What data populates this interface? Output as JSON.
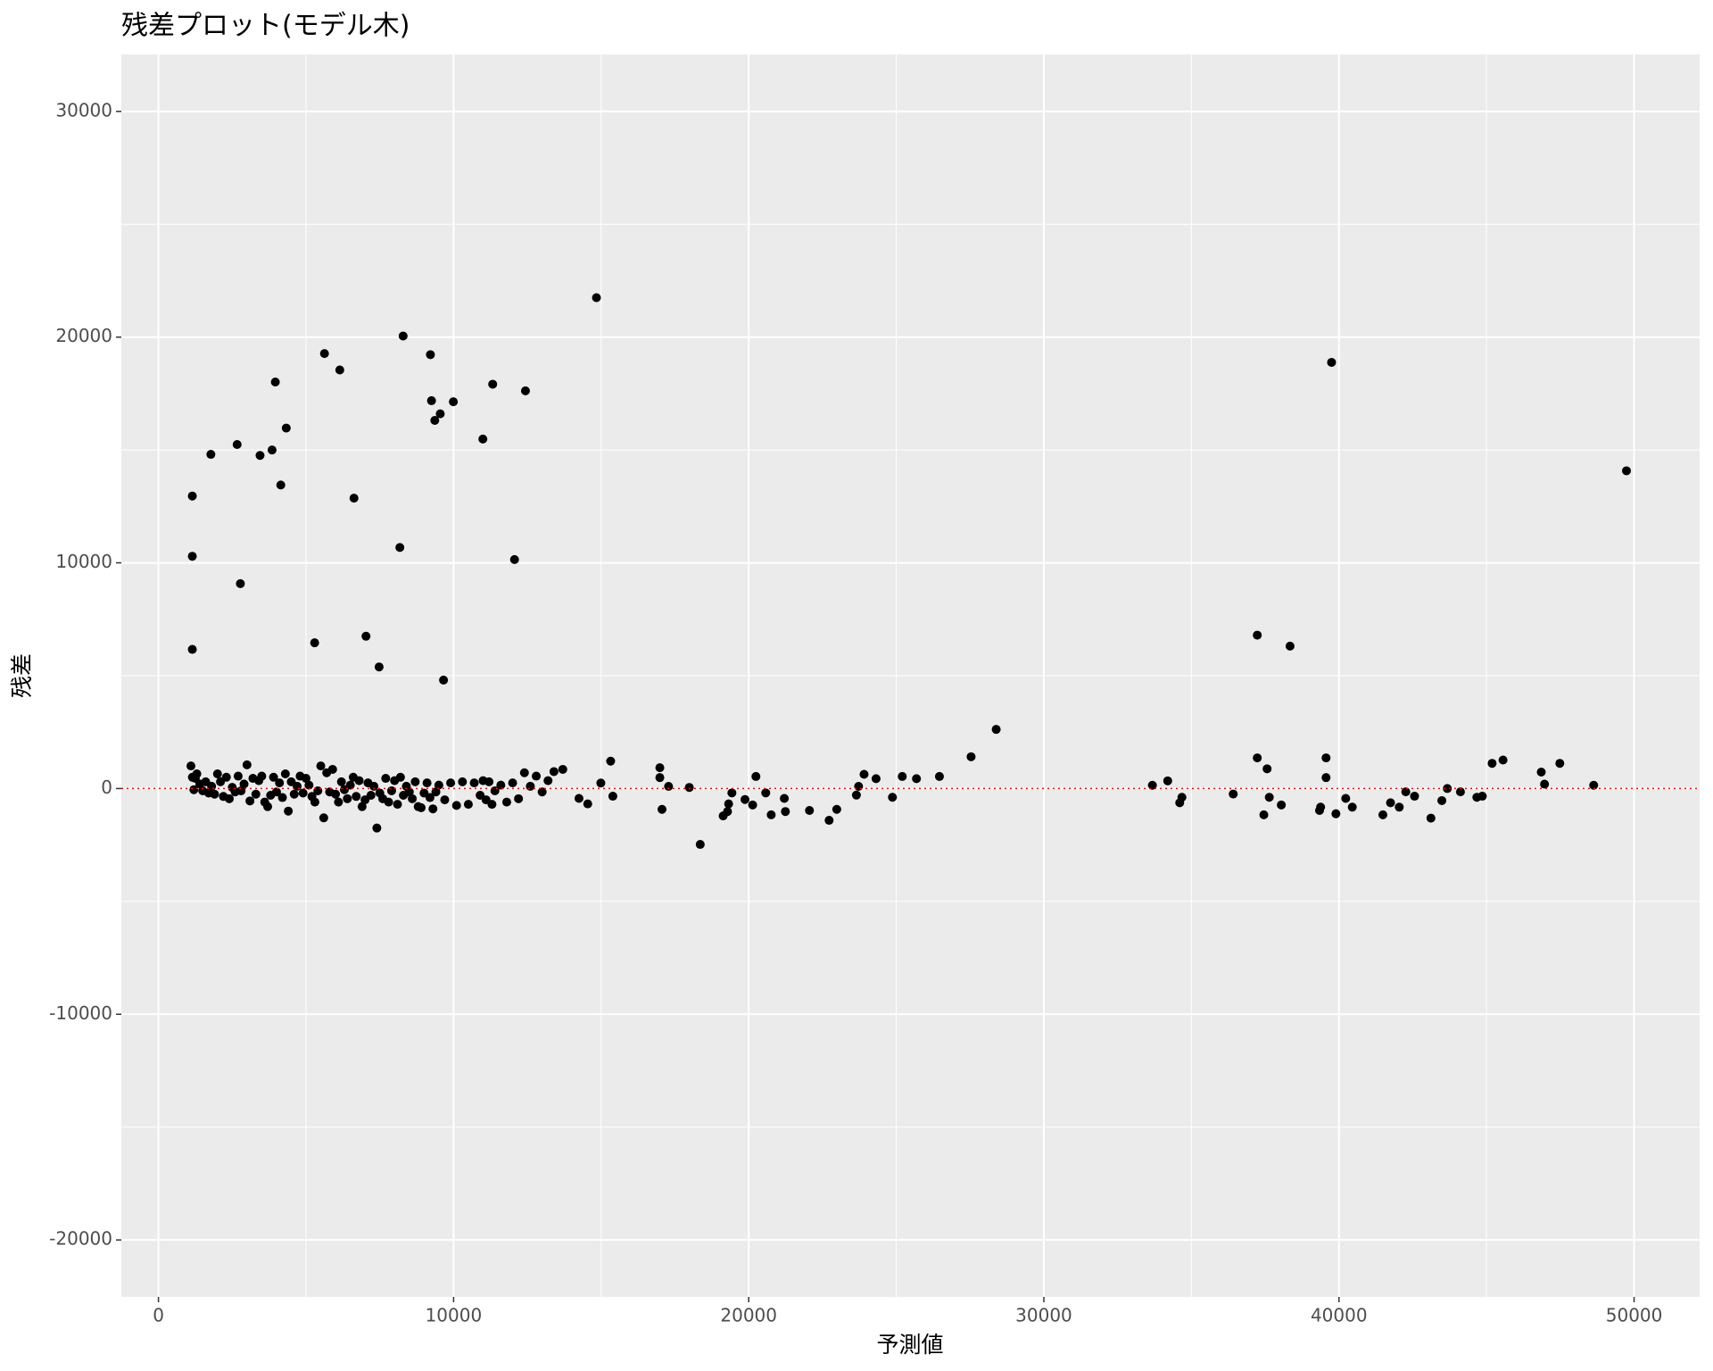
{
  "chart_data": {
    "type": "scatter",
    "title": "残差プロット(モデル木)",
    "x_label": "予測値",
    "y_label": "残差",
    "xlim": [
      -1258,
      52220
    ],
    "ylim": [
      -22524,
      32524
    ],
    "xticks": [
      0,
      10000,
      20000,
      30000,
      40000,
      50000
    ],
    "yticks": [
      -20000,
      -10000,
      0,
      10000,
      20000,
      30000
    ],
    "grid": true,
    "minor_grid": true,
    "color": "#000000",
    "reference_line": {
      "value": 0,
      "color": "#ff0000"
    },
    "x": [
      1100,
      1150,
      1200,
      1250,
      1300,
      1400,
      1500,
      1600,
      1700,
      1800,
      1900,
      2000,
      2100,
      2200,
      2300,
      2400,
      2500,
      2600,
      2700,
      2800,
      2900,
      3000,
      3100,
      3200,
      3300,
      3400,
      3500,
      3600,
      3700,
      3800,
      3900,
      4000,
      4100,
      4200,
      4300,
      4400,
      4500,
      4600,
      4700,
      4800,
      4900,
      5000,
      5100,
      5200,
      5300,
      5400,
      5500,
      5600,
      5700,
      5800,
      5900,
      6000,
      6100,
      6200,
      6300,
      6400,
      6500,
      6600,
      6700,
      6800,
      6900,
      7000,
      7100,
      7200,
      7300,
      7400,
      7500,
      7600,
      7700,
      7800,
      7900,
      8000,
      8100,
      8200,
      8300,
      8400,
      8500,
      8600,
      8700,
      8800,
      8900,
      9000,
      9100,
      9200,
      9300,
      9400,
      9500,
      9700,
      9900,
      10100,
      10300,
      10500,
      10700,
      10900,
      11000,
      11100,
      11200,
      11400,
      11600,
      11800,
      12000,
      12200,
      12400,
      12600,
      12800,
      13000,
      13200,
      13400,
      13700,
      11300,
      1147,
      1147,
      1147,
      1776,
      2665,
      2776,
      3442,
      3849,
      3960,
      4145,
      4330,
      5292,
      5625,
      6144,
      6625,
      7032,
      7476,
      8179,
      8290,
      9215,
      9252,
      9363,
      9548,
      9659,
      9992,
      10992,
      11325,
      12065,
      12435,
      14841,
      37232,
      38342,
      39749,
      49741,
      14249,
      14545,
      14989,
      15322,
      15396,
      16988,
      16988,
      17062,
      17284,
      17987,
      18357,
      19134,
      19282,
      19319,
      19430,
      19874,
      20133,
      20244,
      20577,
      20762,
      21206,
      21243,
      22058,
      22724,
      22983,
      23649,
      23723,
      23908,
      24315,
      24870,
      25203,
      25684,
      26462,
      27535,
      28386,
      33678,
      34197,
      34604,
      34678,
      36417,
      37232,
      37454,
      37565,
      37639,
      38046,
      39341,
      39378,
      39563,
      39563,
      39896,
      40229,
      40451,
      41488,
      41747,
      42043,
      42265,
      42561,
      43116,
      43486,
      43671,
      44116,
      44671,
      44856,
      45189,
      45559,
      46854,
      46965,
      47483,
      48631
    ],
    "values": [
      1000,
      500,
      -50,
      450,
      650,
      200,
      -100,
      300,
      -200,
      100,
      -250,
      650,
      300,
      -350,
      500,
      -450,
      50,
      -150,
      550,
      -100,
      200,
      1050,
      -550,
      450,
      -250,
      350,
      550,
      -600,
      -800,
      -300,
      500,
      -150,
      250,
      -400,
      650,
      -1000,
      300,
      -250,
      100,
      550,
      -200,
      450,
      150,
      -350,
      -600,
      -100,
      1000,
      -1300,
      700,
      -150,
      850,
      -250,
      -600,
      300,
      -50,
      -450,
      150,
      500,
      -350,
      350,
      -800,
      -500,
      250,
      -300,
      100,
      -1750,
      -200,
      -450,
      450,
      -600,
      -100,
      350,
      -700,
      500,
      -300,
      100,
      -150,
      -450,
      300,
      -800,
      -850,
      -200,
      250,
      -400,
      -900,
      -150,
      150,
      -500,
      250,
      -750,
      300,
      -700,
      250,
      -300,
      350,
      -500,
      300,
      -100,
      150,
      -600,
      250,
      -450,
      700,
      100,
      550,
      -150,
      350,
      750,
      850,
      -700,
      12961,
      10291,
      6165,
      14806,
      15243,
      9078,
      14757,
      15000,
      18010,
      13447,
      15971,
      6456,
      19272,
      18544,
      12864,
      6748,
      5388,
      10680,
      20049,
      19223,
      17184,
      16311,
      16602,
      4806,
      17136,
      15485,
      17913,
      10146,
      17621,
      21748,
      6796,
      6311,
      18883,
      14078,
      -437,
      -680,
      243,
      1214,
      -340,
      922,
      485,
      -922,
      97,
      49,
      -2476,
      -1214,
      -1019,
      -680,
      -194,
      -485,
      -728,
      534,
      -194,
      -1165,
      -437,
      -1019,
      -971,
      -1408,
      -922,
      -291,
      97,
      631,
      437,
      -388,
      534,
      437,
      534,
      1408,
      2621,
      146,
      340,
      -631,
      -388,
      -243,
      1359,
      -1165,
      874,
      -388,
      -728,
      -971,
      -825,
      1359,
      485,
      -1117,
      -437,
      -825,
      -1165,
      -631,
      -825,
      -146,
      -340,
      -1311,
      -534,
      0,
      -146,
      -388,
      -340,
      1117,
      1262,
      728,
      194,
      1117,
      146
    ]
  }
}
